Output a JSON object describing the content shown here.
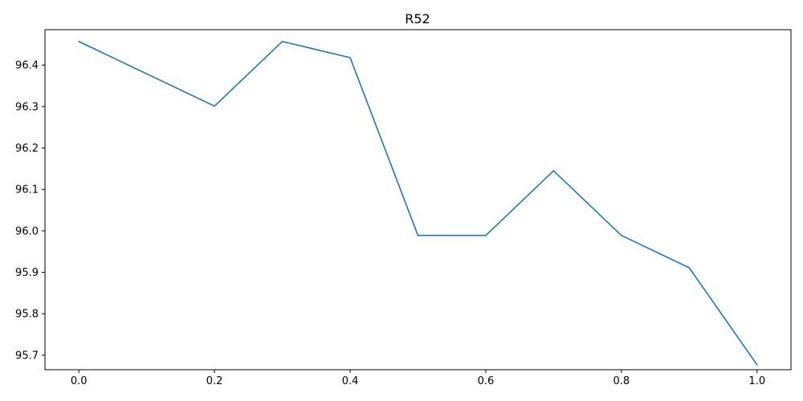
{
  "colors": {
    "line": "#1f77b4",
    "axes": "#000000",
    "background": "#ffffff"
  },
  "chart_data": {
    "type": "line",
    "title": "R52",
    "xlabel": "",
    "ylabel": "",
    "xlim": [
      -0.05,
      1.05
    ],
    "ylim": [
      95.665,
      96.4855
    ],
    "grid": false,
    "x_ticks": [
      "0.0",
      "0.2",
      "0.4",
      "0.6",
      "0.8",
      "1.0"
    ],
    "y_ticks": [
      "95.7",
      "95.8",
      "95.9",
      "96.0",
      "96.1",
      "96.2",
      "96.3",
      "96.4"
    ],
    "series": [
      {
        "x": [
          0.0,
          0.2,
          0.3,
          0.4,
          0.5,
          0.6,
          0.7,
          0.8,
          0.9,
          1.0
        ],
        "y": [
          96.457,
          96.301,
          96.457,
          96.418,
          95.989,
          95.989,
          96.145,
          95.989,
          95.911,
          95.677
        ]
      }
    ]
  }
}
